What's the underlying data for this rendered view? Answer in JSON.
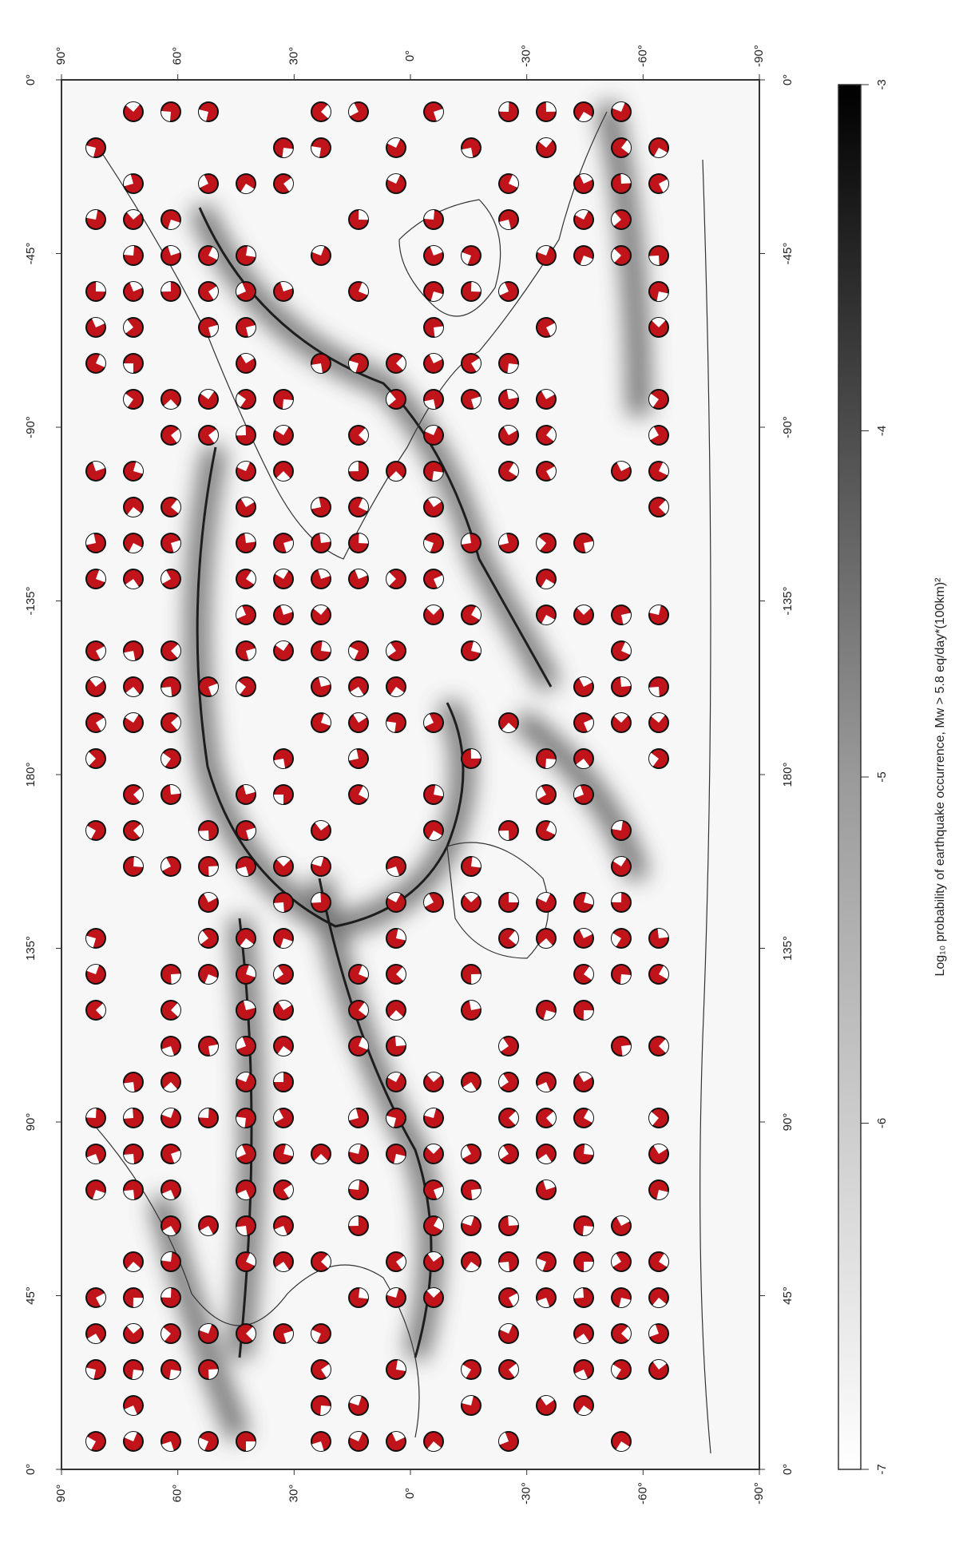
{
  "map": {
    "lat_ticks": [
      {
        "value": 90,
        "label": "90°"
      },
      {
        "value": 60,
        "label": "60°"
      },
      {
        "value": 30,
        "label": "30°"
      },
      {
        "value": 0,
        "label": "0°"
      },
      {
        "value": -30,
        "label": "-30°"
      },
      {
        "value": -60,
        "label": "-60°"
      },
      {
        "value": -90,
        "label": "-90°"
      }
    ],
    "lon_ticks": [
      {
        "value": 0,
        "label": "0°"
      },
      {
        "value": -45,
        "label": "-45°"
      },
      {
        "value": -90,
        "label": "-90°"
      },
      {
        "value": -135,
        "label": "-135°"
      },
      {
        "value": 180,
        "label": "180°"
      },
      {
        "value": 135,
        "label": "135°"
      },
      {
        "value": 90,
        "label": "90°"
      },
      {
        "value": 45,
        "label": "45°"
      },
      {
        "value": 0,
        "label": "0°"
      }
    ],
    "colorbar": {
      "label": "Log₁₀ probability of earthquake occurrence, Mw > 5.8 eq/day*(100km)²",
      "lim": [
        -7,
        -3
      ],
      "ticks": [
        -7,
        -6,
        -5,
        -4,
        -3
      ]
    }
  }
}
